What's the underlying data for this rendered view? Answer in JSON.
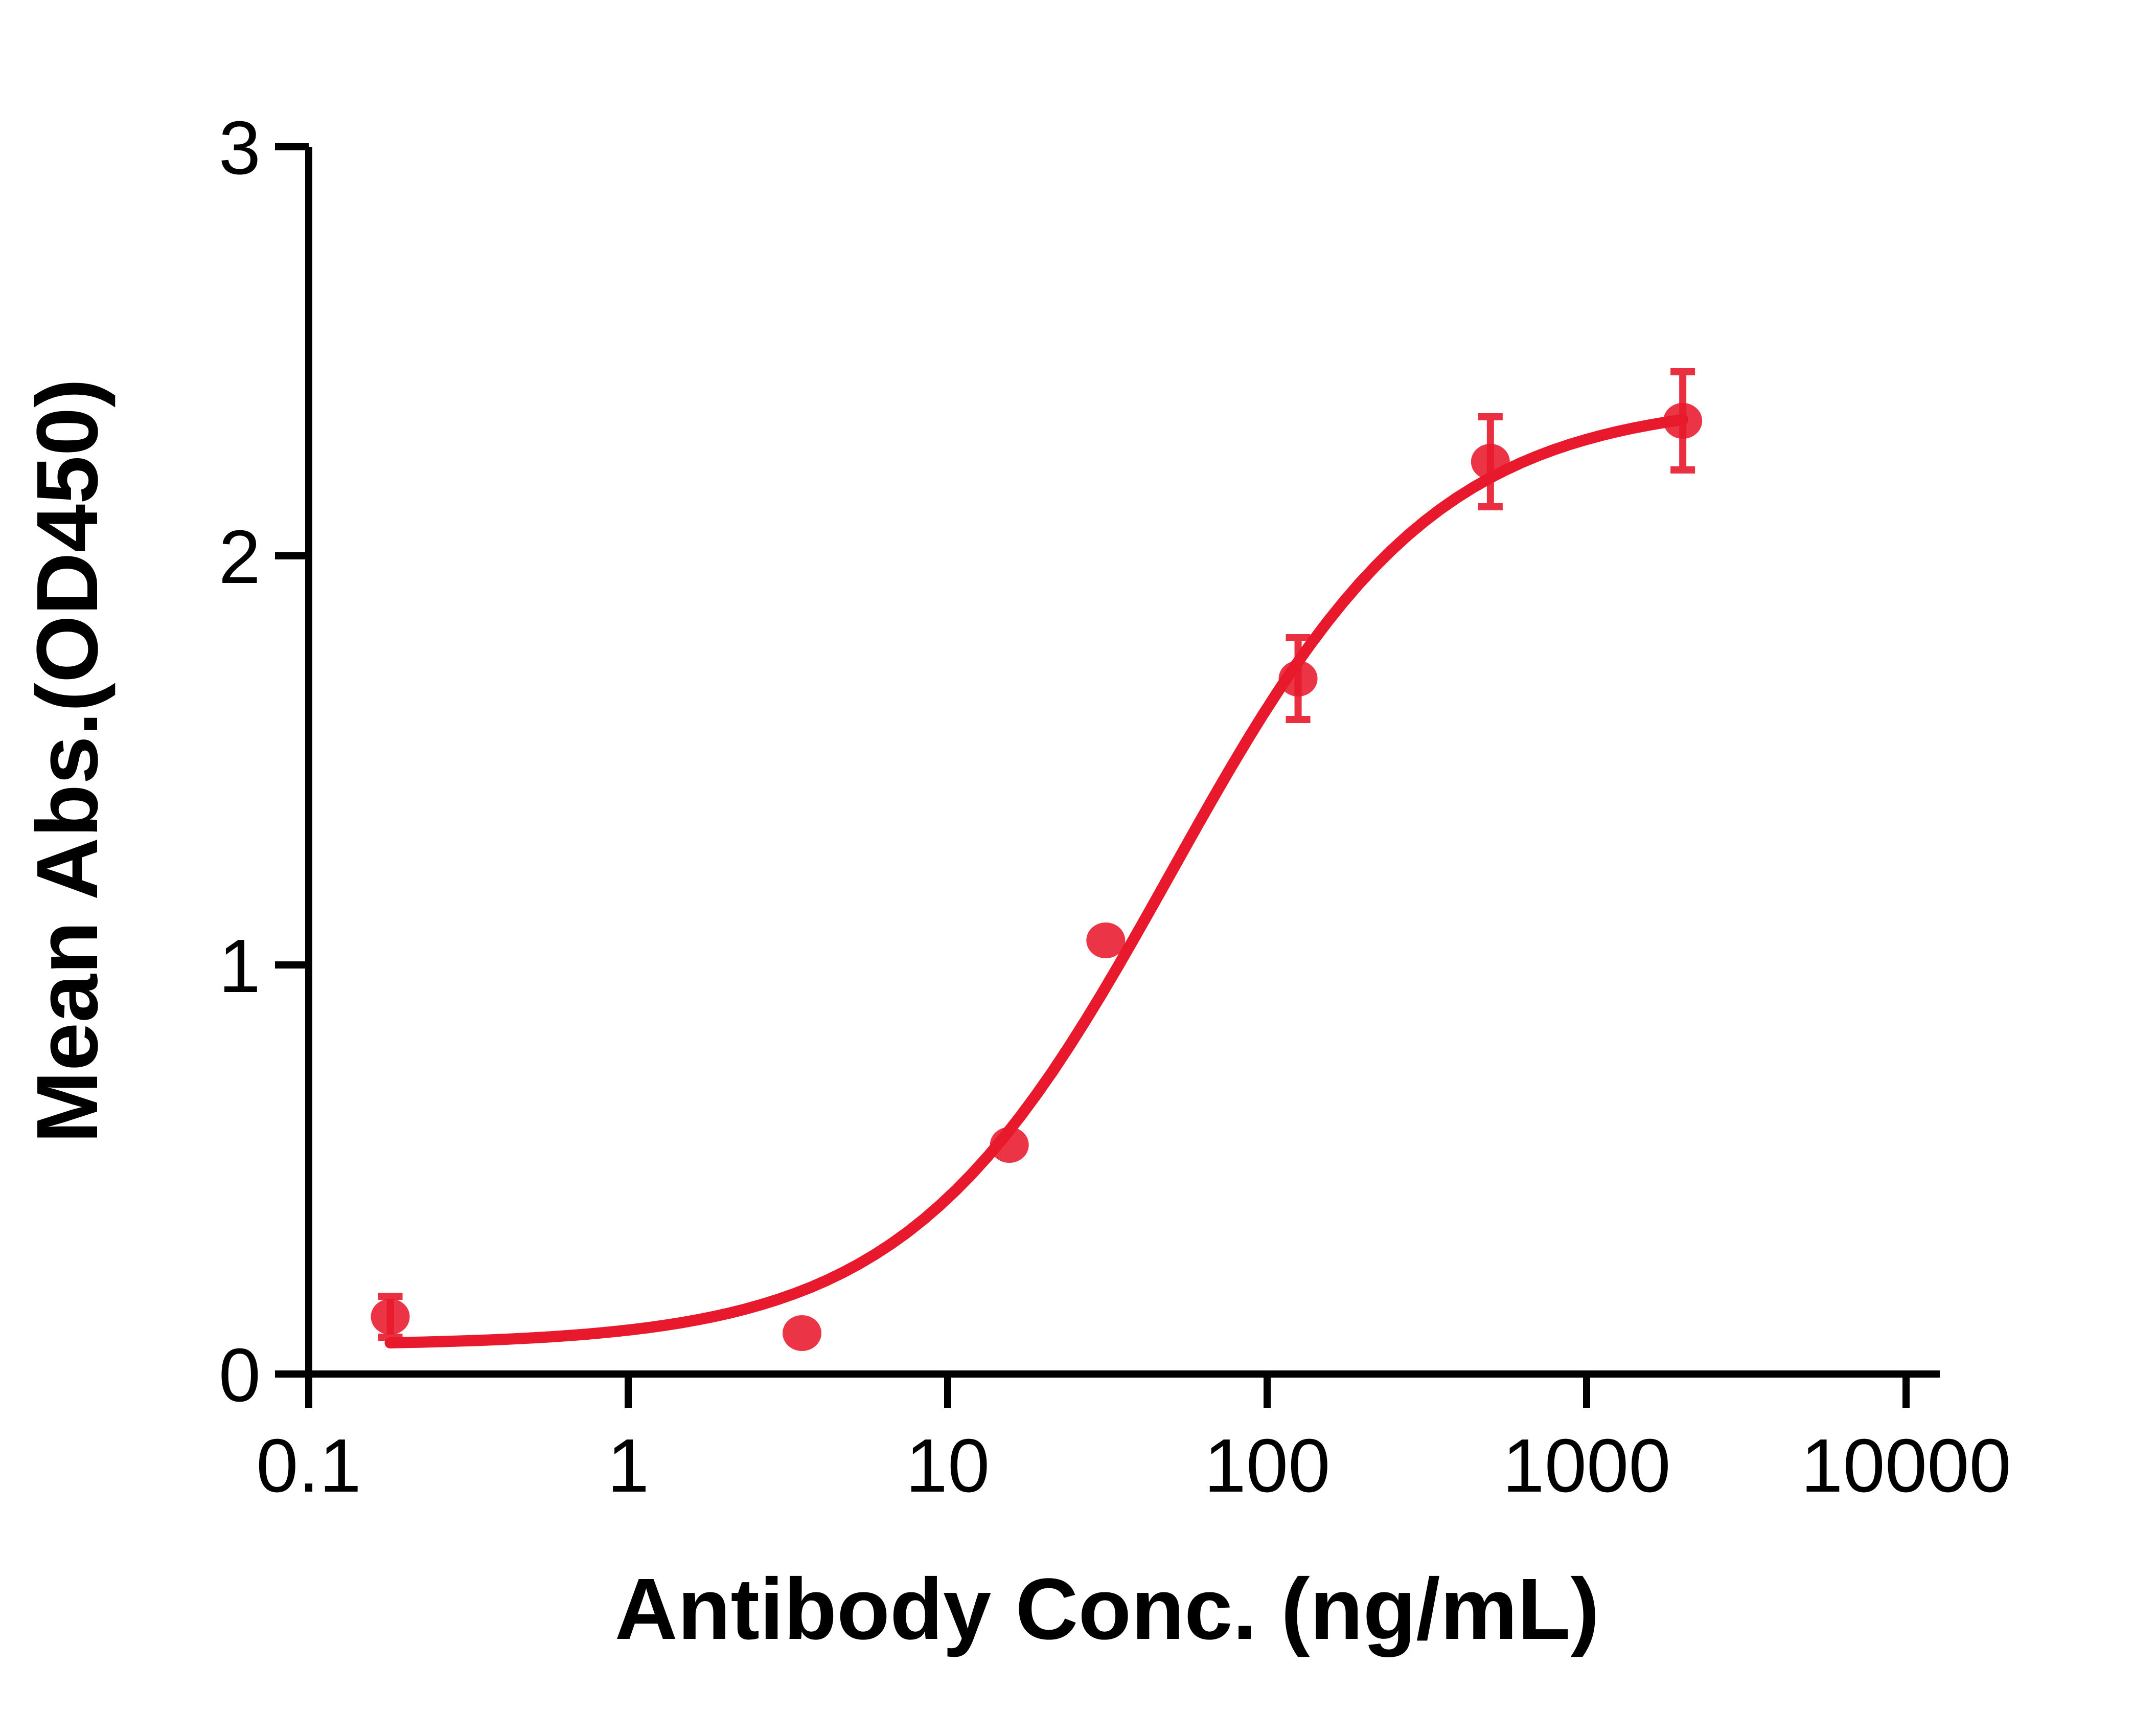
{
  "figure": {
    "background": "#ffffff",
    "axis_color": "#000000",
    "series_color": "#e8192c"
  },
  "chart_data": {
    "type": "scatter",
    "title": "",
    "xlabel": "Antibody Conc. (ng/mL)",
    "ylabel": "Mean Abs.(OD450)",
    "x_scale": "log",
    "xlim": [
      0.1,
      10000
    ],
    "ylim": [
      0,
      3
    ],
    "grid": false,
    "legend_position": "none",
    "x_ticks": [
      {
        "value": 0.1,
        "label": "0.1"
      },
      {
        "value": 1,
        "label": "1"
      },
      {
        "value": 10,
        "label": "10"
      },
      {
        "value": 100,
        "label": "100"
      },
      {
        "value": 1000,
        "label": "1000"
      },
      {
        "value": 10000,
        "label": "10000"
      }
    ],
    "y_ticks": [
      {
        "value": 0,
        "label": "0"
      },
      {
        "value": 1,
        "label": "1"
      },
      {
        "value": 2,
        "label": "2"
      },
      {
        "value": 3,
        "label": "3"
      }
    ],
    "series": [
      {
        "color": "#e8192c",
        "marker": "circle",
        "points": [
          {
            "x": 0.18,
            "y": 0.14,
            "y_err": 0.05
          },
          {
            "x": 3.5,
            "y": 0.1,
            "y_err": 0
          },
          {
            "x": 15.6,
            "y": 0.56,
            "y_err": 0
          },
          {
            "x": 31.25,
            "y": 1.06,
            "y_err": 0
          },
          {
            "x": 125,
            "y": 1.7,
            "y_err": 0.1
          },
          {
            "x": 500,
            "y": 2.23,
            "y_err": 0.11
          },
          {
            "x": 2000,
            "y": 2.33,
            "y_err": 0.12
          }
        ],
        "fit_curve": {
          "model": "4PL",
          "bottom": 0.07,
          "top": 2.38,
          "ec50": 50,
          "hill": 1.05,
          "x_range": [
            0.18,
            2000
          ]
        }
      }
    ]
  }
}
